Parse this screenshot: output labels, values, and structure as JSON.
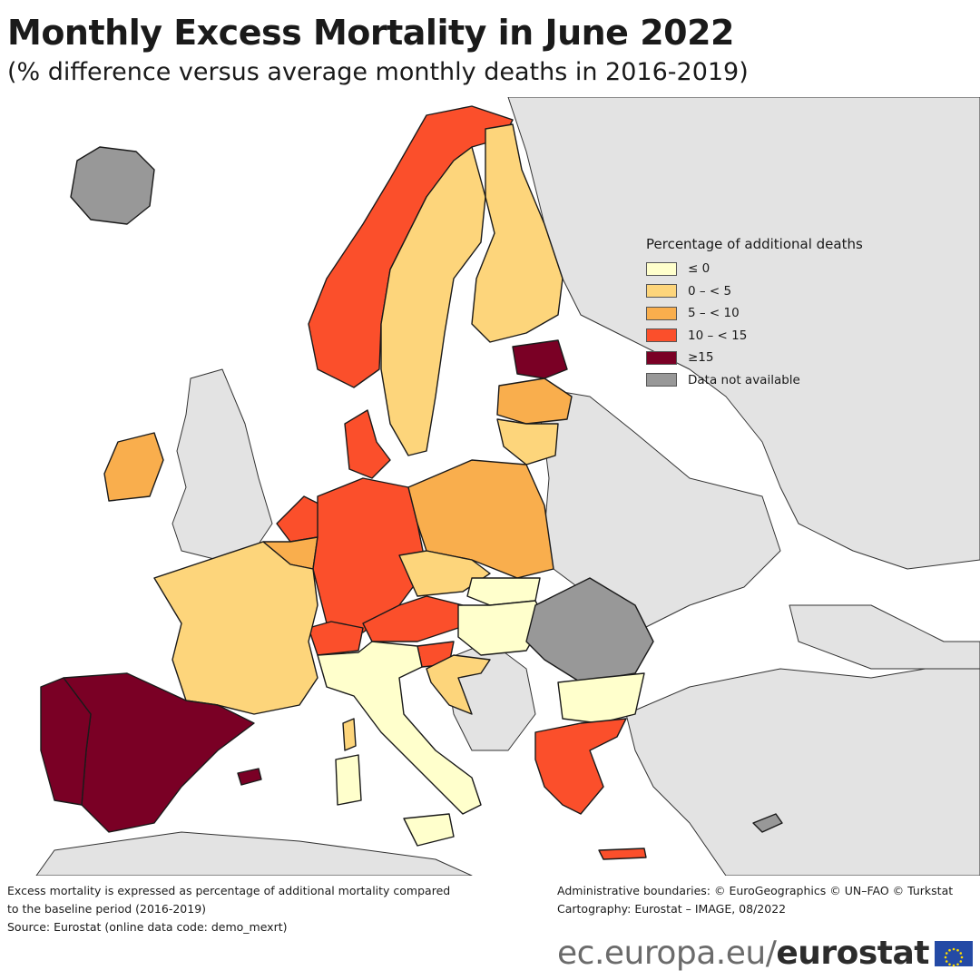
{
  "title": "Monthly Excess Mortality in June 2022",
  "subtitle": "(% difference versus average monthly deaths in 2016-2019)",
  "legend": {
    "title": "Percentage of additional deaths",
    "items": [
      {
        "label": "≤ 0",
        "color": "#ffffcc"
      },
      {
        "label": "0 – < 5",
        "color": "#fdd57b"
      },
      {
        "label": "5 – < 10",
        "color": "#f9ae4d"
      },
      {
        "label": "10 – < 15",
        "color": "#fb4f2b"
      },
      {
        "label": "≥15",
        "color": "#7a0025"
      },
      {
        "label": "Data not available",
        "color": "#989898"
      }
    ]
  },
  "colors": {
    "le0": "#ffffcc",
    "0to5": "#fdd57b",
    "5to10": "#f9ae4d",
    "10to15": "#fb4f2b",
    "ge15": "#7a0025",
    "na": "#989898",
    "non_eu": "#e3e3e3",
    "sea": "#ffffff"
  },
  "countries": [
    {
      "name": "Spain",
      "class": "ge15"
    },
    {
      "name": "Portugal",
      "class": "ge15"
    },
    {
      "name": "Estonia",
      "class": "ge15"
    },
    {
      "name": "Norway",
      "class": "10to15"
    },
    {
      "name": "Denmark",
      "class": "10to15"
    },
    {
      "name": "Germany",
      "class": "10to15"
    },
    {
      "name": "Netherlands",
      "class": "10to15"
    },
    {
      "name": "Switzerland",
      "class": "10to15"
    },
    {
      "name": "Austria",
      "class": "10to15"
    },
    {
      "name": "Slovenia",
      "class": "10to15"
    },
    {
      "name": "Greece",
      "class": "10to15"
    },
    {
      "name": "Liechtenstein",
      "class": "10to15"
    },
    {
      "name": "Ireland",
      "class": "5to10"
    },
    {
      "name": "Belgium",
      "class": "5to10"
    },
    {
      "name": "Luxembourg",
      "class": "5to10"
    },
    {
      "name": "Poland",
      "class": "5to10"
    },
    {
      "name": "Latvia",
      "class": "5to10"
    },
    {
      "name": "France",
      "class": "0to5"
    },
    {
      "name": "Sweden",
      "class": "0to5"
    },
    {
      "name": "Finland",
      "class": "0to5"
    },
    {
      "name": "Czechia",
      "class": "0to5"
    },
    {
      "name": "Lithuania",
      "class": "0to5"
    },
    {
      "name": "Croatia",
      "class": "0to5"
    },
    {
      "name": "Italy",
      "class": "le0"
    },
    {
      "name": "Hungary",
      "class": "le0"
    },
    {
      "name": "Slovakia",
      "class": "le0"
    },
    {
      "name": "Bulgaria",
      "class": "le0"
    },
    {
      "name": "Iceland",
      "class": "na"
    },
    {
      "name": "Romania",
      "class": "na"
    },
    {
      "name": "Cyprus",
      "class": "na"
    }
  ],
  "footer": {
    "left": [
      "Excess mortality is expressed as percentage of additional mortality compared",
      "to the baseline period (2016-2019)",
      "Source: Eurostat (online data code: demo_mexrt)"
    ],
    "right": [
      "Administrative boundaries: © EuroGeographics © UN–FAO © Turkstat",
      "Cartography: Eurostat – IMAGE, 08/2022"
    ]
  },
  "brand": {
    "domain": "ec.europa.eu/",
    "name": "eurostat"
  }
}
